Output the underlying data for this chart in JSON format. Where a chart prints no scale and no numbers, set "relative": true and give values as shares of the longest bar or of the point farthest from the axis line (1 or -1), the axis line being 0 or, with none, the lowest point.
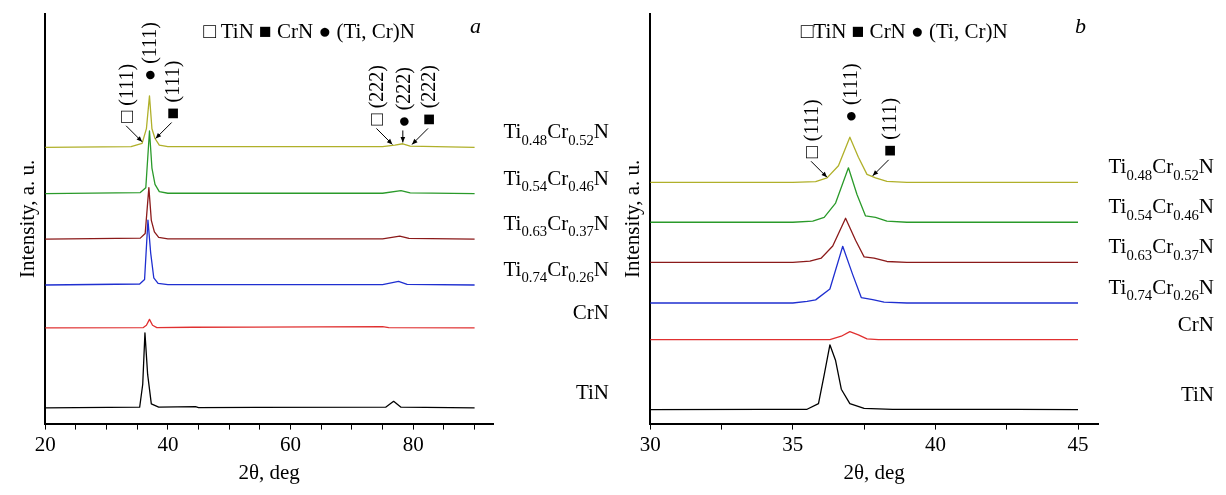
{
  "chart_data": [
    {
      "type": "line",
      "xlabel": "2θ, deg",
      "ylabel": "Intensity, a. u.",
      "relative": true,
      "grid": false,
      "legend": false,
      "marker": "none",
      "line_style": "solid",
      "tick_labels": "x",
      "xlim": [
        20,
        93
      ],
      "xticks": [
        20,
        {
          "value": 25,
          "label": null
        },
        {
          "value": 30,
          "label": null
        },
        {
          "value": 35,
          "label": null
        },
        40,
        {
          "value": 45,
          "label": null
        },
        {
          "value": 50,
          "label": null
        },
        {
          "value": 55,
          "label": null
        },
        60,
        {
          "value": 65,
          "label": null
        },
        {
          "value": 70,
          "label": null
        },
        {
          "value": 75,
          "label": null
        },
        80,
        {
          "value": 85,
          "label": null
        },
        {
          "value": 90,
          "label": null
        }
      ],
      "annotations": [
        "□ TiN ■ CrN ● (Ti, Cr)N",
        "a",
        {
          "text": "□ (111)",
          "x": 35.8,
          "y": 0.86
        },
        {
          "text": "● (111)",
          "x": 37.0,
          "y": 1.0
        },
        {
          "text": "■ (111)",
          "x": 38.0,
          "y": 0.87
        },
        {
          "text": "□ (222)",
          "x": 76.6,
          "y": 0.852
        },
        {
          "text": "● (222)",
          "x": 78.3,
          "y": 0.858
        },
        {
          "text": "■ (222)",
          "x": 79.8,
          "y": 0.852
        }
      ],
      "series": [
        {
          "name": "Ti$_{0.48}$Cr$_{0.52}$N",
          "color": "#b0b02a",
          "x": [
            20,
            34,
            35.8,
            36.5,
            37.0,
            37.4,
            37.9,
            38.6,
            40,
            75,
            77,
            78.3,
            79.5,
            90
          ],
          "values": [
            0.843,
            0.845,
            0.855,
            0.9,
            1.0,
            0.9,
            0.87,
            0.85,
            0.845,
            0.845,
            0.85,
            0.854,
            0.847,
            0.843
          ]
        },
        {
          "name": "Ti$_{0.54}$Cr$_{0.46}$N",
          "color": "#2a9a2a",
          "x": [
            20,
            35.5,
            36.4,
            37.0,
            37.4,
            37.9,
            38.6,
            40,
            75,
            78,
            79.5,
            90
          ],
          "values": [
            0.702,
            0.705,
            0.72,
            0.893,
            0.78,
            0.73,
            0.708,
            0.703,
            0.703,
            0.711,
            0.704,
            0.702
          ]
        },
        {
          "name": "Ti$_{0.63}$Cr$_{0.37}$N",
          "color": "#8b1a1a",
          "x": [
            20,
            35.5,
            36.3,
            36.9,
            37.3,
            37.8,
            38.5,
            40,
            75,
            77.8,
            79.3,
            90
          ],
          "values": [
            0.563,
            0.566,
            0.58,
            0.72,
            0.62,
            0.585,
            0.568,
            0.564,
            0.564,
            0.572,
            0.565,
            0.563
          ]
        },
        {
          "name": "Ti$_{0.74}$Cr$_{0.26}$N",
          "color": "#1f2fd0",
          "x": [
            20,
            35.4,
            36.2,
            36.75,
            37.2,
            37.7,
            38.4,
            40,
            75,
            77.6,
            79,
            90
          ],
          "values": [
            0.423,
            0.426,
            0.44,
            0.621,
            0.52,
            0.445,
            0.428,
            0.424,
            0.424,
            0.434,
            0.425,
            0.423
          ]
        },
        {
          "name": "CrN",
          "color": "#e03030",
          "x": [
            20,
            36,
            36.5,
            37.0,
            37.5,
            38.2,
            44,
            75,
            76,
            90
          ],
          "values": [
            0.292,
            0.293,
            0.3,
            0.318,
            0.3,
            0.293,
            0.294,
            0.296,
            0.293,
            0.292
          ]
        },
        {
          "name": "TiN",
          "color": "#000000",
          "x": [
            20,
            35.4,
            35.9,
            36.26,
            36.7,
            37.3,
            38.5,
            44.5,
            45,
            75.5,
            76.8,
            78,
            90
          ],
          "values": [
            0.048,
            0.05,
            0.12,
            0.277,
            0.15,
            0.06,
            0.05,
            0.052,
            0.049,
            0.05,
            0.068,
            0.05,
            0.048
          ]
        }
      ]
    },
    {
      "type": "line",
      "xlabel": "2θ, deg",
      "ylabel": "Intensity, a. u.",
      "relative": true,
      "grid": false,
      "legend": false,
      "marker": "none",
      "line_style": "solid",
      "tick_labels": "x",
      "xlim": [
        30,
        45.7
      ],
      "xticks": [
        30,
        {
          "value": 32.5,
          "label": null
        },
        35,
        {
          "value": 37.5,
          "label": null
        },
        40,
        {
          "value": 42.5,
          "label": null
        },
        45
      ],
      "annotations": [
        "□TiN ■ CrN ● (Ti, Cr)N",
        "b",
        {
          "text": "□ (111)",
          "x": 36.2,
          "y": 0.86
        },
        {
          "text": "● (111)",
          "x": 37.0,
          "y": 1.0
        },
        {
          "text": "■ (111)",
          "x": 37.8,
          "y": 0.865
        }
      ],
      "series": [
        {
          "name": "Ti$_{0.48}$Cr$_{0.52}$N",
          "color": "#b0b02a",
          "x": [
            30,
            35,
            35.8,
            36.2,
            36.6,
            37.0,
            37.3,
            37.6,
            37.9,
            38.3,
            39,
            45
          ],
          "values": [
            0.842,
            0.842,
            0.845,
            0.858,
            0.9,
            1.0,
            0.93,
            0.87,
            0.858,
            0.846,
            0.842,
            0.842
          ]
        },
        {
          "name": "Ti$_{0.54}$Cr$_{0.46}$N",
          "color": "#2a9a2a",
          "x": [
            30,
            35,
            35.7,
            36.1,
            36.5,
            36.95,
            37.25,
            37.55,
            37.9,
            38.3,
            39,
            45
          ],
          "values": [
            0.703,
            0.703,
            0.707,
            0.72,
            0.77,
            0.893,
            0.8,
            0.725,
            0.72,
            0.707,
            0.703,
            0.703
          ]
        },
        {
          "name": "Ti$_{0.63}$Cr$_{0.37}$N",
          "color": "#8b1a1a",
          "x": [
            30,
            35,
            35.6,
            36.0,
            36.4,
            36.85,
            37.2,
            37.5,
            37.85,
            38.3,
            39,
            45
          ],
          "values": [
            0.563,
            0.563,
            0.567,
            0.578,
            0.62,
            0.717,
            0.64,
            0.582,
            0.578,
            0.566,
            0.563,
            0.563
          ]
        },
        {
          "name": "Ti$_{0.74}$Cr$_{0.26}$N",
          "color": "#1f2fd0",
          "x": [
            30,
            35,
            35.5,
            35.8,
            36.3,
            36.75,
            37.1,
            37.4,
            37.8,
            38.2,
            39,
            45
          ],
          "values": [
            0.421,
            0.421,
            0.427,
            0.432,
            0.47,
            0.619,
            0.52,
            0.44,
            0.433,
            0.424,
            0.421,
            0.421
          ]
        },
        {
          "name": "CrN",
          "color": "#e03030",
          "x": [
            30,
            36.3,
            36.7,
            37.0,
            37.3,
            37.6,
            38,
            45
          ],
          "values": [
            0.293,
            0.293,
            0.305,
            0.321,
            0.31,
            0.296,
            0.293,
            0.293
          ]
        },
        {
          "name": "TiN",
          "color": "#000000",
          "x": [
            30,
            35.5,
            35.9,
            36.1,
            36.3,
            36.5,
            36.7,
            37.0,
            37.5,
            38.5,
            45
          ],
          "values": [
            0.049,
            0.05,
            0.07,
            0.17,
            0.275,
            0.22,
            0.12,
            0.07,
            0.053,
            0.05,
            0.049
          ]
        }
      ]
    }
  ]
}
